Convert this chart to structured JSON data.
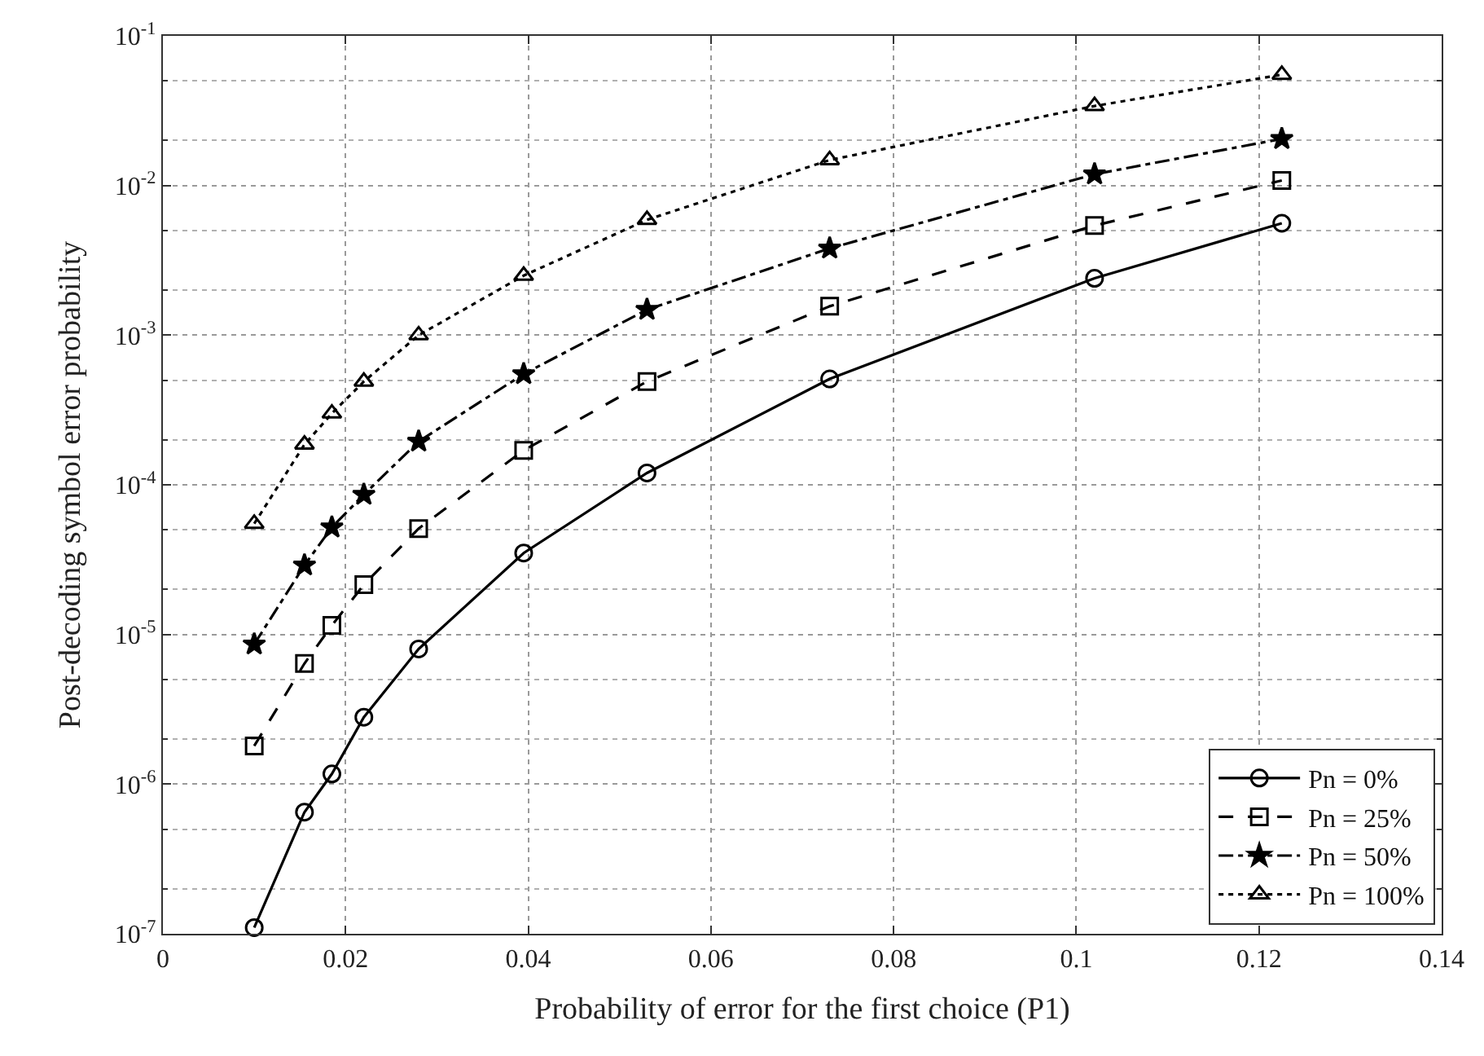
{
  "chart_data": {
    "type": "line",
    "xlabel": "Probability of error for the first choice (P1)",
    "ylabel": "Post-decoding symbol error probability",
    "x": [
      0.01,
      0.0155,
      0.0185,
      0.022,
      0.028,
      0.0395,
      0.053,
      0.073,
      0.102,
      0.1225
    ],
    "series": [
      {
        "name": "Pn = 0%",
        "color": "#000000",
        "marker": "circle",
        "line_style": "solid",
        "values": [
          1.1e-07,
          6.5e-07,
          1.17e-06,
          2.8e-06,
          8e-06,
          3.5e-05,
          0.00012,
          0.00051,
          0.0024,
          0.0056
        ]
      },
      {
        "name": "Pn = 25%",
        "color": "#000000",
        "marker": "square",
        "line_style": "dashed",
        "values": [
          1.8e-06,
          6.4e-06,
          1.15e-05,
          2.15e-05,
          5.1e-05,
          0.00017,
          0.00049,
          0.00156,
          0.0054,
          0.0108
        ]
      },
      {
        "name": "Pn = 50%",
        "color": "#000000",
        "marker": "star",
        "line_style": "dashdot",
        "values": [
          8.6e-06,
          2.9e-05,
          5.2e-05,
          8.6e-05,
          0.000195,
          0.00055,
          0.00148,
          0.0038,
          0.0119,
          0.0205
        ]
      },
      {
        "name": "Pn = 100%",
        "color": "#000000",
        "marker": "triangle",
        "line_style": "dotted",
        "values": [
          5.5e-05,
          0.000186,
          0.0003,
          0.00049,
          0.001,
          0.0025,
          0.0059,
          0.0148,
          0.034,
          0.055
        ]
      }
    ],
    "log": "y",
    "grid": true,
    "legend": "bottom right",
    "xlim": [
      0,
      0.14
    ],
    "xticks": [
      0,
      0.02,
      0.04,
      0.06,
      0.08,
      0.1,
      0.12,
      0.14
    ],
    "ylim": [
      1e-07,
      0.1
    ],
    "yticks": [
      {
        "value": 1e-07,
        "label": "10$^{-7}$"
      },
      {
        "value": 1e-06,
        "label": "10$^{-6}$"
      },
      {
        "value": 1e-05,
        "label": "10$^{-5}$"
      },
      {
        "value": 0.0001,
        "label": "10$^{-4}$"
      },
      {
        "value": 0.001,
        "label": "10$^{-3}$"
      },
      {
        "value": 0.01,
        "label": "10$^{-2}$"
      },
      {
        "value": 0.1,
        "label": "10$^{-1}$"
      }
    ]
  }
}
